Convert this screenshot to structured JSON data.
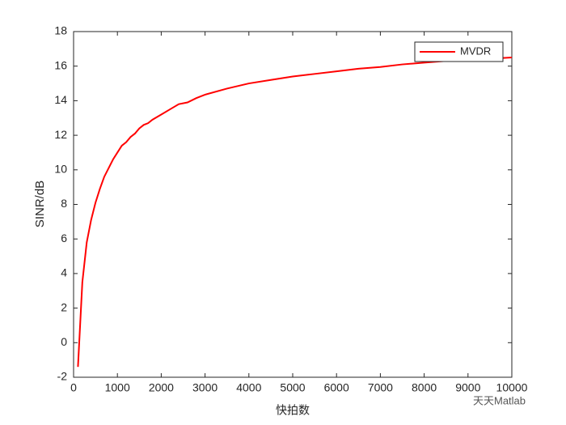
{
  "chart_data": {
    "type": "line",
    "xlabel": "快拍数",
    "ylabel": "SINR/dB",
    "x": [
      100,
      200,
      300,
      400,
      500,
      600,
      700,
      800,
      900,
      1000,
      1100,
      1200,
      1300,
      1400,
      1500,
      1600,
      1700,
      1800,
      2000,
      2200,
      2400,
      2600,
      2800,
      3000,
      3500,
      4000,
      4500,
      5000,
      5500,
      6000,
      6500,
      7000,
      7500,
      8000,
      8500,
      9000,
      9500,
      10000
    ],
    "series": [
      {
        "name": "MVDR",
        "color": "#ff0000",
        "values": [
          -1.4,
          3.5,
          5.8,
          7.1,
          8.1,
          8.9,
          9.6,
          10.1,
          10.6,
          11.0,
          11.4,
          11.6,
          11.9,
          12.1,
          12.4,
          12.6,
          12.7,
          12.9,
          13.2,
          13.5,
          13.8,
          13.9,
          14.15,
          14.35,
          14.7,
          15.0,
          15.2,
          15.4,
          15.55,
          15.7,
          15.85,
          15.95,
          16.1,
          16.2,
          16.3,
          16.38,
          16.43,
          16.5
        ]
      }
    ],
    "xlim": [
      0,
      10000
    ],
    "xticks": [
      0,
      1000,
      2000,
      3000,
      4000,
      5000,
      6000,
      7000,
      8000,
      9000,
      10000
    ],
    "ylim": [
      -2,
      18
    ],
    "yticks": [
      -2,
      0,
      2,
      4,
      6,
      8,
      10,
      12,
      14,
      16,
      18
    ],
    "legend": "top-right",
    "watermark": "天天Matlab"
  }
}
